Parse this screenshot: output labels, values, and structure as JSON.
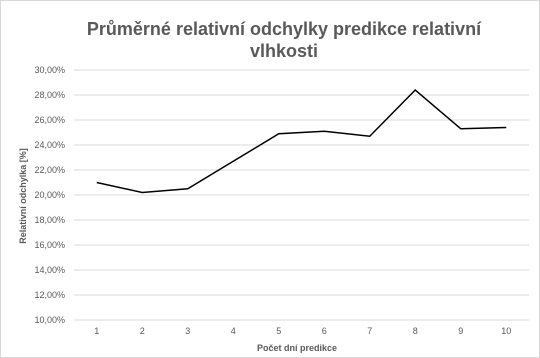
{
  "chart_data": {
    "type": "line",
    "title_lines": [
      "Průměrné relativní odchylky predikce relativní",
      "vlhkosti"
    ],
    "xlabel": "Počet dní predikce",
    "ylabel": "Relativní odchylka [%]",
    "categories": [
      "1",
      "2",
      "3",
      "4",
      "5",
      "6",
      "7",
      "8",
      "9",
      "10"
    ],
    "series": [
      {
        "values": [
          21.0,
          20.2,
          20.5,
          22.7,
          24.9,
          25.1,
          24.7,
          28.4,
          25.3,
          25.4
        ],
        "color": "#000000"
      }
    ],
    "ylim": [
      10,
      30
    ],
    "ytick_values": [
      10,
      12,
      14,
      16,
      18,
      20,
      22,
      24,
      26,
      28,
      30
    ],
    "ytick_labels": [
      "10,00%",
      "12,00%",
      "14,00%",
      "16,00%",
      "18,00%",
      "20,00%",
      "22,00%",
      "24,00%",
      "26,00%",
      "28,00%",
      "30,00%"
    ],
    "grid": true,
    "legend": "none"
  }
}
